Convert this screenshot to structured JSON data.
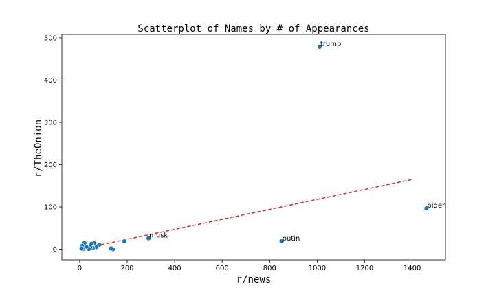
{
  "chart_data": {
    "type": "scatter",
    "title": "Scatterplot of Names by # of Appearances",
    "xlabel": "r/news",
    "ylabel": "r/TheOnion",
    "xlim": [
      -75,
      1540
    ],
    "ylim": [
      -25,
      508
    ],
    "xticks": [
      0,
      200,
      400,
      600,
      800,
      1000,
      1200,
      1400
    ],
    "yticks": [
      0,
      100,
      200,
      300,
      400,
      500
    ],
    "grid": false,
    "point_color": "#1f77b4",
    "point_stroke": "#ffffff",
    "trend_color": "#d62728",
    "points": [
      {
        "x": 1010,
        "y": 479,
        "label": "trump"
      },
      {
        "x": 1460,
        "y": 97,
        "label": "biden"
      },
      {
        "x": 850,
        "y": 19,
        "label": "putin"
      },
      {
        "x": 290,
        "y": 26,
        "label": "musk"
      },
      {
        "x": 188,
        "y": 19,
        "label": ""
      },
      {
        "x": 140,
        "y": 0,
        "label": ""
      },
      {
        "x": 132,
        "y": 2,
        "label": ""
      },
      {
        "x": 83,
        "y": 11,
        "label": ""
      },
      {
        "x": 70,
        "y": 5,
        "label": ""
      },
      {
        "x": 62,
        "y": 14,
        "label": ""
      },
      {
        "x": 55,
        "y": 3,
        "label": ""
      },
      {
        "x": 50,
        "y": 13,
        "label": ""
      },
      {
        "x": 45,
        "y": 5,
        "label": ""
      },
      {
        "x": 38,
        "y": 1,
        "label": ""
      },
      {
        "x": 28,
        "y": 6,
        "label": ""
      },
      {
        "x": 20,
        "y": 15,
        "label": ""
      },
      {
        "x": 15,
        "y": 1,
        "label": ""
      },
      {
        "x": 10,
        "y": 8,
        "label": ""
      },
      {
        "x": 8,
        "y": 2,
        "label": ""
      }
    ],
    "trendline": {
      "x": [
        0,
        1400
      ],
      "y": [
        0,
        165
      ]
    }
  }
}
